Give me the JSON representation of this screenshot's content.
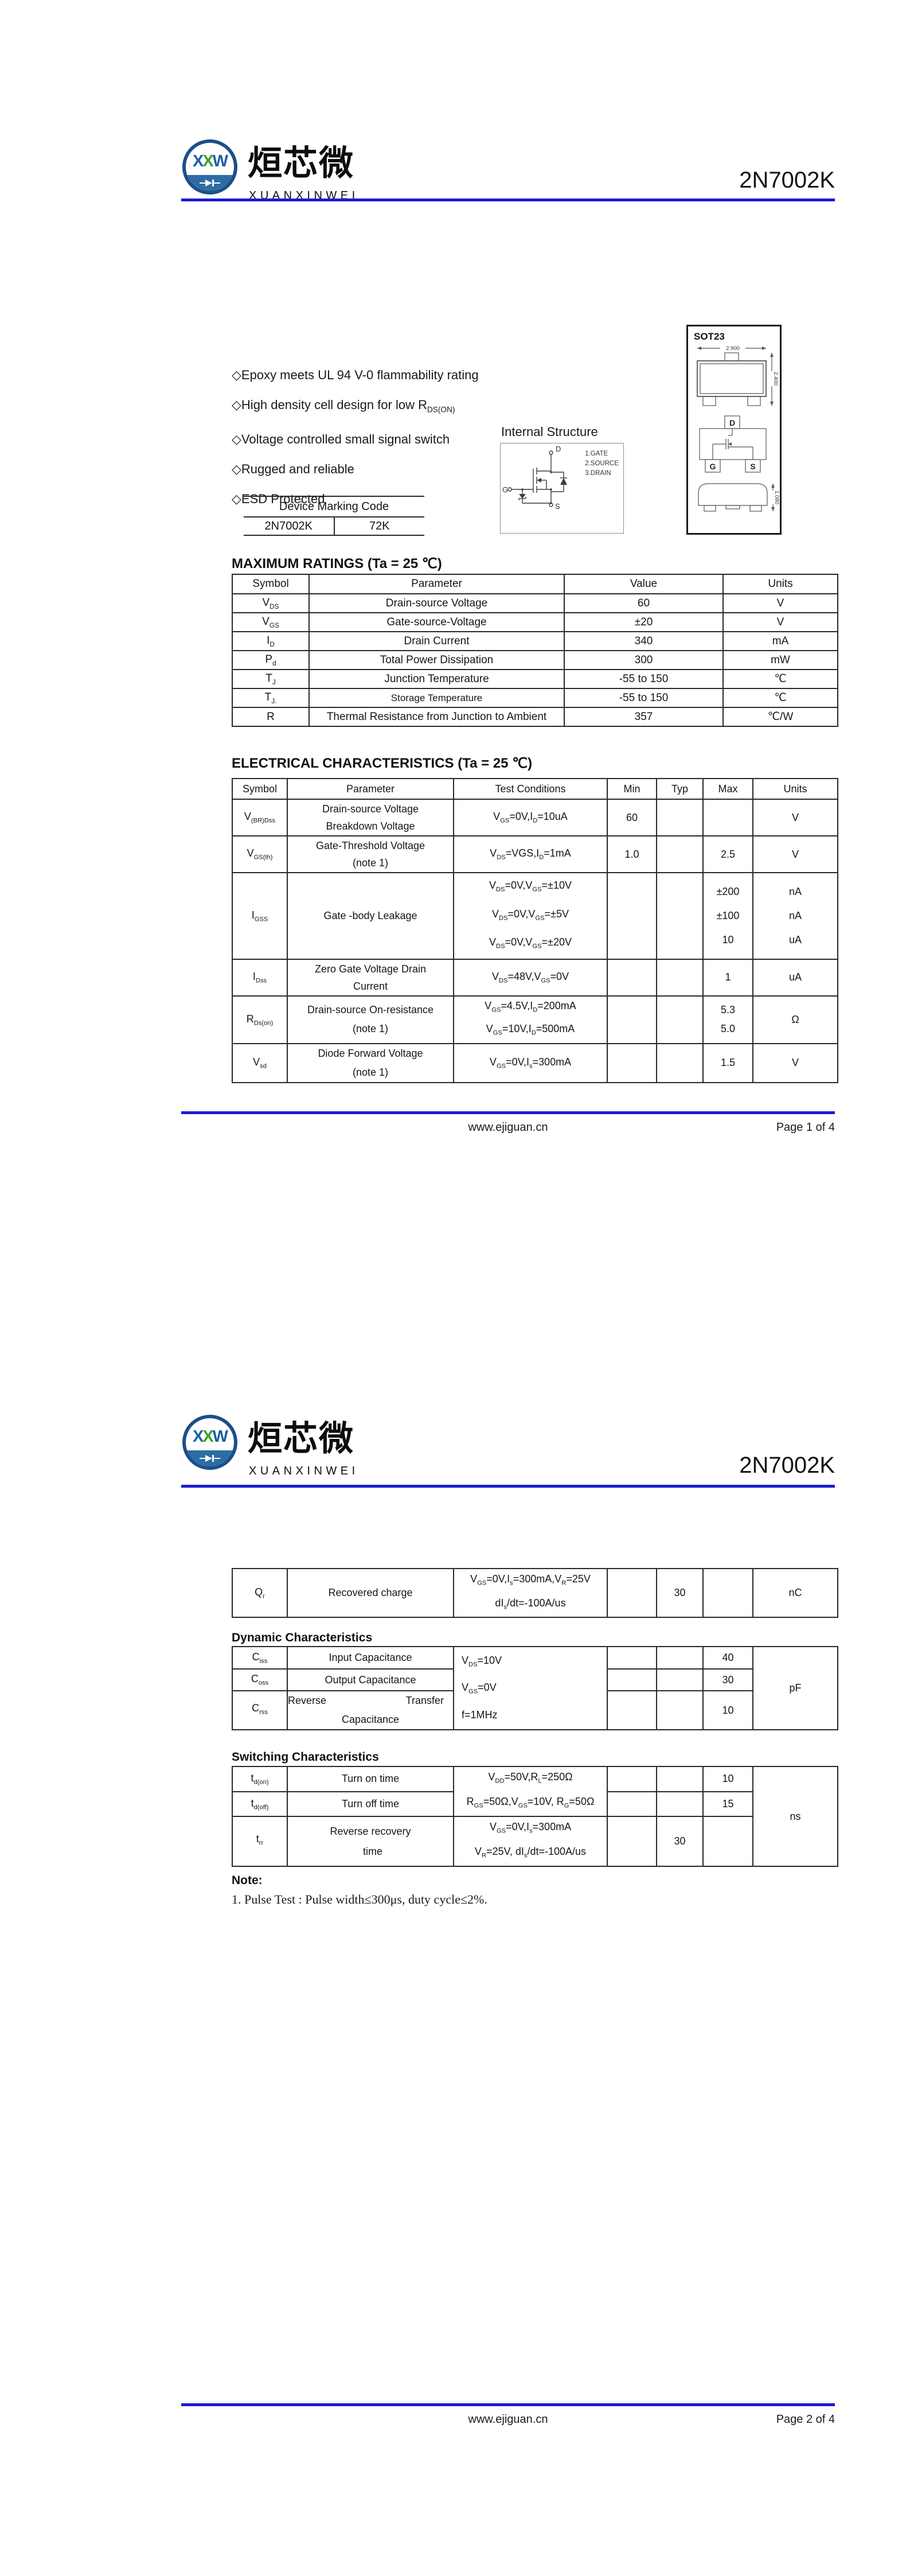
{
  "colors": {
    "rule_blue": "#1b1bd1",
    "logo_blue": "#1d5fa7",
    "logo_green": "#3f9e2d",
    "logo_navy": "#1b4f8a",
    "chord_blue": "#2e6da4"
  },
  "logo": {
    "xxw_1": "X",
    "xxw_2": "X",
    "xxw_3": "W",
    "cn": "烜芯微",
    "en": "XUANXINWEI"
  },
  "p1": {
    "title": "2N7002K",
    "features": [
      "◇Epoxy meets UL 94 V-0 flammability rating",
      "◇High density cell design for low R<sub>DS(ON)</sub>",
      "◇Voltage controlled small signal switch",
      "◇Rugged and reliable",
      "◇ESD Protected"
    ],
    "internal": {
      "label": "Internal Structure",
      "legend": [
        "1.GATE",
        "2.SOURCE",
        "3.DRAIN"
      ],
      "d": "D",
      "g": "G",
      "s": "S"
    },
    "sot23": {
      "name": "SOT23",
      "dim_w": "2.900",
      "dim_h": "2.400",
      "dim_t": "1.080",
      "d": "D",
      "g": "G",
      "s": "S"
    },
    "marking": {
      "title": "Device Marking Code",
      "part": "2N7002K",
      "code": "72K"
    },
    "max": {
      "title": "MAXIMUM RATINGS (Ta = 25 ℃)",
      "h": [
        "Symbol",
        "Parameter",
        "Value",
        "Units"
      ],
      "rows": [
        {
          "s": "V<sub>DS</sub>",
          "p": "Drain-source Voltage",
          "v": "60",
          "u": "V"
        },
        {
          "s": "V<sub>GS</sub>",
          "p": "Gate-source-Voltage",
          "v": "±20",
          "u": "V"
        },
        {
          "s": "I<sub>D</sub>",
          "p": "Drain Current",
          "v": "340",
          "u": "mA"
        },
        {
          "s": "P<sub>d</sub>",
          "p": "Total Power Dissipation",
          "v": "300",
          "u": "mW"
        },
        {
          "s": "T<sub>J</sub>",
          "p": "Junction Temperature",
          "v": "-55 to 150",
          "u": "℃"
        },
        {
          "s": "T<sub>J.</sub>",
          "p": "Storage Temperature",
          "v": "-55 to 150",
          "u": "℃"
        },
        {
          "s": "R",
          "p": "Thermal Resistance from Junction to Ambient",
          "v": "357",
          "u": "℃/W"
        }
      ]
    },
    "ec": {
      "title": "ELECTRICAL CHARACTERISTICS (Ta = 25 ℃)",
      "h": [
        "Symbol",
        "Parameter",
        "Test Conditions",
        "Min",
        "Typ",
        "Max",
        "Units"
      ],
      "vbr": {
        "s": "V<sub>(BR)Dss</sub>",
        "p1": "Drain-source Voltage",
        "p2": "Breakdown Voltage",
        "c": "V<sub>GS</sub>=0V,I<sub>D</sub>=10uA",
        "min": "60",
        "u": "V"
      },
      "vgsth": {
        "s": "V<sub>GS(th)</sub>",
        "p1": "Gate-Threshold Voltage",
        "p2": "(note 1)",
        "c": "V<sub>DS</sub>=VGS,I<sub>D</sub>=1mA",
        "min": "1.0",
        "max": "2.5",
        "u": "V"
      },
      "igss": {
        "s": "I<sub>GSS</sub>",
        "p": "Gate -body Leakage",
        "c1": "V<sub>DS</sub>=0V,V<sub>GS</sub>=±10V",
        "c2": "V<sub>DS</sub>=0V,V<sub>GS</sub>=±5V",
        "c3": "V<sub>DS</sub>=0V,V<sub>GS</sub>=±20V",
        "max1": "±200",
        "max2": "±100",
        "max3": "10",
        "u1": "nA",
        "u2": "nA",
        "u3": "uA"
      },
      "idss": {
        "s": "I<sub>Dss</sub>",
        "p1": "Zero Gate Voltage Drain",
        "p2": "Current",
        "c": "V<sub>DS</sub>=48V,V<sub>GS</sub>=0V",
        "max": "1",
        "u": "uA"
      },
      "rdson": {
        "s": "R<sub>Ds(on)</sub>",
        "p1": "Drain-source On-resistance",
        "p2": "(note 1)",
        "c1": "V<sub>GS</sub>=4.5V,I<sub>D</sub>=200mA",
        "c2": "V<sub>GS</sub>=10V,I<sub>D</sub>=500mA",
        "max1": "5.3",
        "max2": "5.0",
        "u": "Ω"
      },
      "vsd": {
        "s": "V<sub>sd</sub>",
        "p1": "Diode Forward Voltage",
        "p2": "(note 1)",
        "c": "V<sub>GS</sub>=0V,I<sub>s</sub>=300mA",
        "max": "1.5",
        "u": "V"
      }
    },
    "footer": {
      "site": "www.ejiguan.cn",
      "page": "Page 1 of 4"
    }
  },
  "p2": {
    "title": "2N7002K",
    "qr": {
      "s": "Q<sub>r</sub>",
      "p": "Recovered charge",
      "c1": "V<sub>GS</sub>=0V,I<sub>s</sub>=300mA,V<sub>R</sub>=25V",
      "c2": "dI<sub>s</sub>/dt=-100A/us",
      "typ": "30",
      "u": "nC"
    },
    "dyn": {
      "title": "Dynamic Characteristics",
      "c1": "V<sub>DS</sub>=10V",
      "c2": "V<sub>GS</sub>=0V",
      "c3": "f=1MHz",
      "u": "pF",
      "rows": [
        {
          "s": "C<sub>iss</sub>",
          "p": "Input Capacitance",
          "max": "40"
        },
        {
          "s": "C<sub>oss</sub>",
          "p": "Output Capacitance",
          "max": "30"
        },
        {
          "s": "C<sub>rss</sub>",
          "p1": "Reverse Transfer",
          "p2": "Capacitance",
          "max": "10"
        }
      ]
    },
    "sw": {
      "title": "Switching Characteristics",
      "c12a": "V<sub>DD</sub>=50V,R<sub>L</sub>=250Ω",
      "c12b": "R<sub>GS</sub>=50Ω,V<sub>GS</sub>=10V, R<sub>G</sub>=50Ω",
      "u": "ns",
      "rows": [
        {
          "s": "t<sub>d(on)</sub>",
          "p": "Turn on time",
          "max": "10"
        },
        {
          "s": "t<sub>d(off)</sub>",
          "p": "Turn off time",
          "max": "15"
        },
        {
          "s": "t<sub>rr</sub>",
          "p1": "Reverse recovery",
          "p2": "time",
          "c1": "V<sub>GS</sub>=0V,I<sub>s</sub>=300mA",
          "c2": "V<sub>R</sub>=25V, dI<sub>s</sub>/dt=-100A/us",
          "typ": "30"
        }
      ]
    },
    "note_title": "Note:",
    "note": "1. Pulse Test : Pulse width≤300μs, duty cycle≤2%.",
    "footer": {
      "site": "www.ejiguan.cn",
      "page": "Page 2 of 4"
    }
  }
}
